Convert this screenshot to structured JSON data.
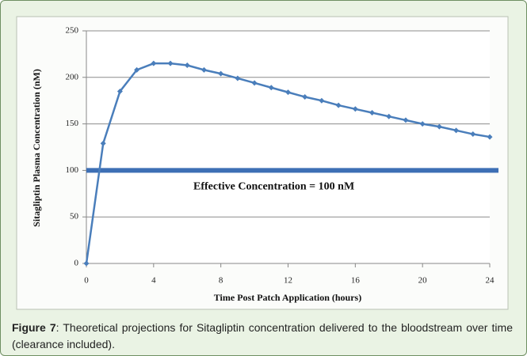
{
  "chart_data": {
    "type": "line",
    "xlabel": "Time Post Patch Application (hours)",
    "ylabel": "Sitagliptin Plasma Concentration (nM)",
    "annotation": "Effective Concentration = 100 nM",
    "threshold": 100,
    "threshold_color": "#3d6fb5",
    "x": [
      0,
      1,
      2,
      3,
      4,
      5,
      6,
      7,
      8,
      9,
      10,
      11,
      12,
      13,
      14,
      15,
      16,
      17,
      18,
      19,
      20,
      21,
      22,
      23,
      24
    ],
    "series": [
      {
        "name": "Sitagliptin",
        "color": "#4a7ebb",
        "values": [
          0,
          129,
          185,
          208,
          215,
          215,
          213,
          208,
          204,
          199,
          194,
          189,
          184,
          179,
          175,
          170,
          166,
          162,
          158,
          154,
          150,
          147,
          143,
          139,
          136
        ]
      }
    ],
    "xlim": [
      0,
      24
    ],
    "xticks": [
      0,
      4,
      8,
      12,
      16,
      20,
      24
    ],
    "ylim": [
      0,
      250
    ],
    "yticks": [
      0,
      50,
      100,
      150,
      200,
      250
    ],
    "grid": true
  },
  "caption": {
    "label": "Figure 7",
    "text": ": Theoretical projections for Sitagliptin concentration delivered to the bloodstream over time (clearance included)."
  }
}
